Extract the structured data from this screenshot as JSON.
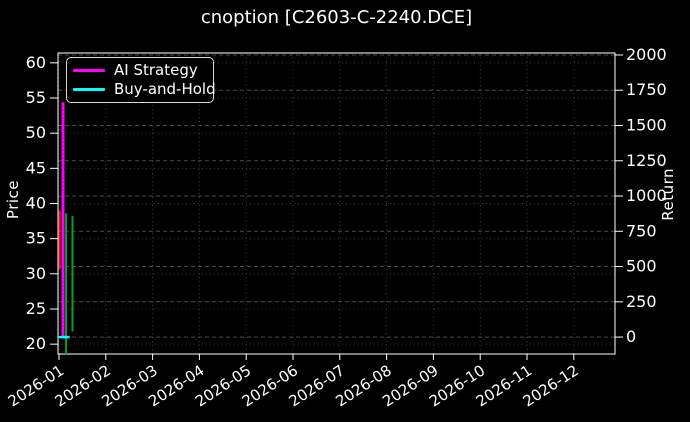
{
  "chart_data": {
    "type": "line",
    "title": "cnoption [C2603-C-2240.DCE]",
    "theme": "dark",
    "x_axis": {
      "tick_labels": [
        "2026-01",
        "2026-02",
        "2026-03",
        "2026-04",
        "2026-05",
        "2026-06",
        "2026-07",
        "2026-08",
        "2026-09",
        "2026-10",
        "2026-11",
        "2026-12"
      ],
      "label_rotation_deg": 33
    },
    "left_axis": {
      "label": "Price",
      "ticks": [
        20,
        25,
        30,
        35,
        40,
        45,
        50,
        55,
        60
      ],
      "range": [
        18.6,
        61.4
      ]
    },
    "right_axis": {
      "label": "Return",
      "ticks": [
        0,
        250,
        500,
        750,
        1000,
        1250,
        1500,
        1750,
        2000
      ],
      "range": [
        -120,
        2014
      ]
    },
    "legend": {
      "position": "upper-left",
      "items": [
        {
          "label": "AI Strategy",
          "color": "#ff00ff"
        },
        {
          "label": "Buy-and-Hold",
          "color": "#00ffff"
        }
      ]
    },
    "grid": {
      "visible": true,
      "line_style": "dotted",
      "color": "#3d3d3d",
      "return_grid_color": "#4a4a4a"
    },
    "data_note": "All plotted data is compressed into the first days of 2026-01 at the far left edge; the rest of the year is empty.",
    "series_segments": [
      {
        "series": "price-decline",
        "orientation": "vertical",
        "axis": "left",
        "color": "#ff1414",
        "x_frac": 0.003,
        "value_min": 30.7,
        "value_max": 39.0,
        "line_width": 2
      },
      {
        "series": "price-advance",
        "orientation": "vertical",
        "axis": "left",
        "color": "#00a32e",
        "x_frac": 0.0145,
        "value_min": 18.6,
        "value_max": 38.6,
        "line_width": 2
      },
      {
        "series": "price-advance-2",
        "orientation": "vertical",
        "axis": "left",
        "color": "#00a32e",
        "x_frac": 0.026,
        "value_min": 21.8,
        "value_max": 38.2,
        "line_width": 2
      },
      {
        "series": "ai-strategy-return-spike",
        "orientation": "vertical",
        "axis": "right",
        "color": "#ff00ff",
        "x_frac": 0.009,
        "value_min": 0,
        "value_max": 1665,
        "line_width": 3
      },
      {
        "series": "buy-and-hold-return",
        "orientation": "horizontal",
        "axis": "right",
        "color": "#00ffff",
        "x_frac_start": 0.0,
        "x_frac_end": 0.021,
        "value": 0,
        "line_width": 2.5
      }
    ],
    "colors": {
      "background": "#000000",
      "foreground": "#ffffff"
    }
  }
}
